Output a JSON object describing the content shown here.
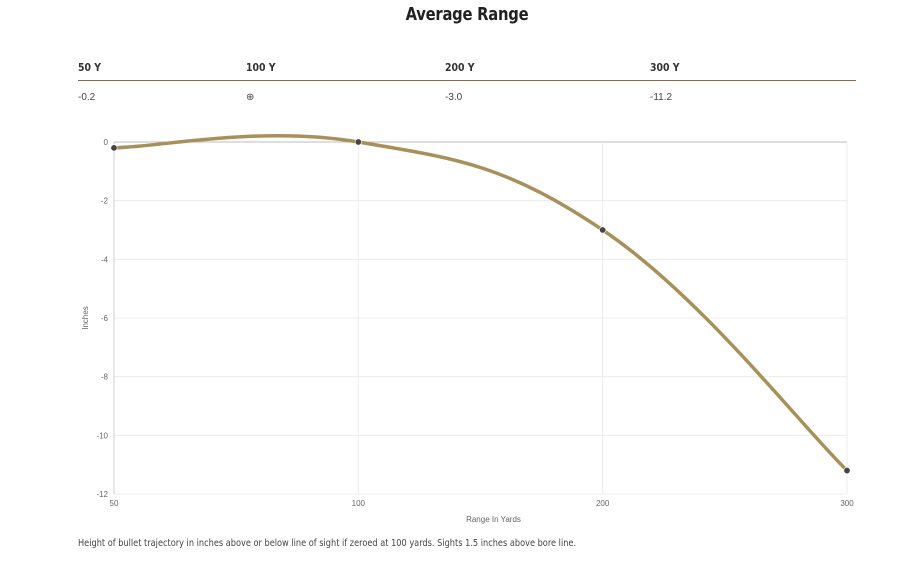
{
  "title": "Average Range",
  "table": {
    "headers": [
      "50 Y",
      "100 Y",
      "200 Y",
      "300 Y"
    ],
    "values": [
      "-0.2",
      "⊕",
      "-3.0",
      "-11.2"
    ]
  },
  "chart_data": {
    "type": "line",
    "xlabel": "Range In Yards",
    "ylabel": "Inches",
    "x_ticks": [
      "50",
      "100",
      "200",
      "300"
    ],
    "y_ticks": [
      "0",
      "-2",
      "-4",
      "-6",
      "-8",
      "-10",
      "-12"
    ],
    "ylim": [
      -12,
      0
    ],
    "grid": true,
    "line_color": "#a8905a",
    "marker_color": "#444444",
    "points": [
      {
        "x": 50,
        "y": -0.2
      },
      {
        "x": 100,
        "y": 0
      },
      {
        "x": 200,
        "y": -3.0
      },
      {
        "x": 300,
        "y": -11.2
      }
    ]
  },
  "caption": "Height of bullet trajectory in inches above or below line of sight if zeroed at 100 yards. Sights 1.5 inches above bore line."
}
